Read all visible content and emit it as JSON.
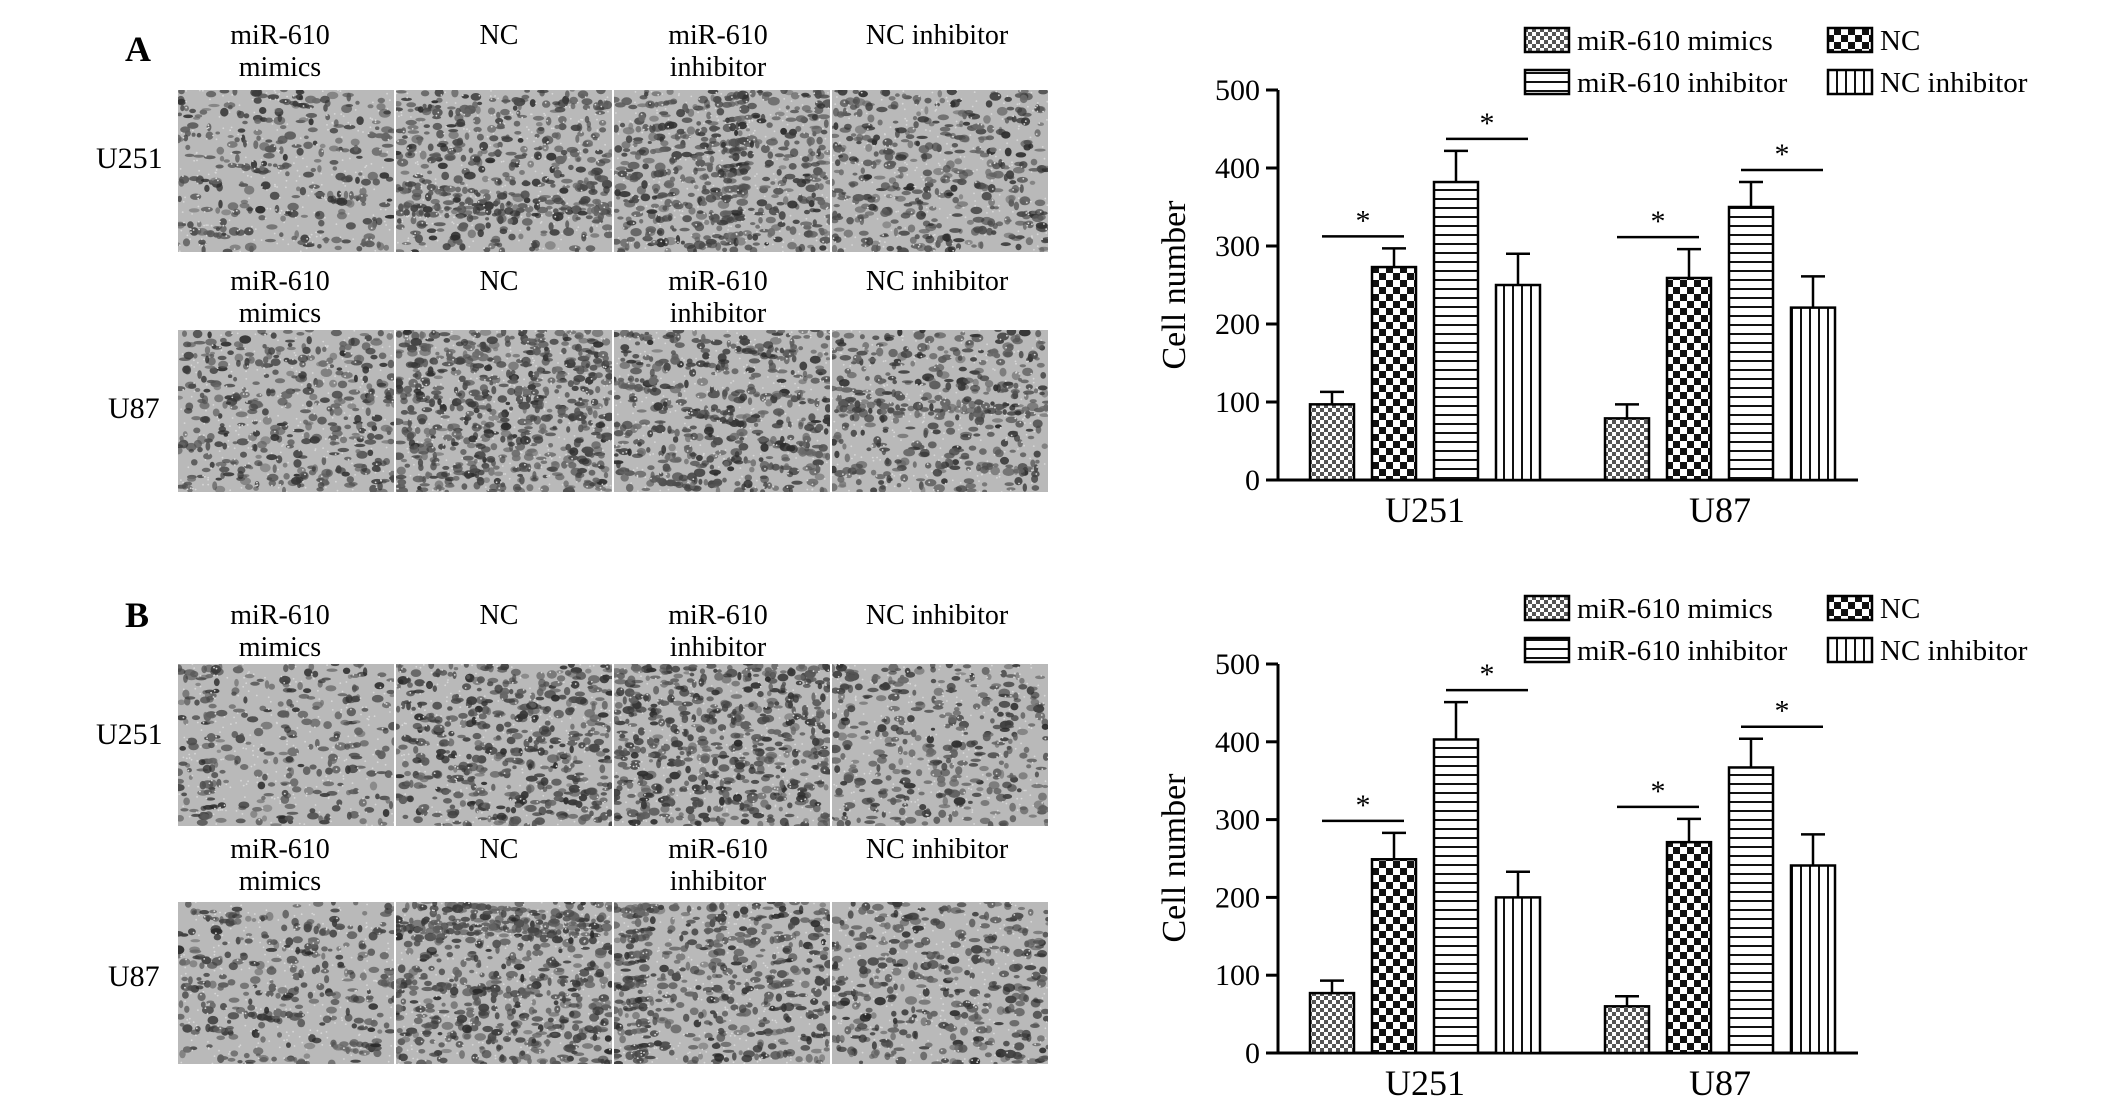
{
  "groups": [
    "miR-610 mimics",
    "NC",
    "miR-610 inhibitor",
    "NC inhibitor"
  ],
  "cells": [
    "U251",
    "U87"
  ],
  "panels": [
    {
      "letter": "A",
      "columns": [
        {
          "line1": "miR-610",
          "line2": "mimics"
        },
        {
          "line1": "",
          "line2": "NC"
        },
        {
          "line1": "miR-610",
          "line2": "inhibitor"
        },
        {
          "line1": "",
          "line2": "NC inhibitor"
        }
      ],
      "rows": [
        "U251",
        "U87"
      ],
      "images": [
        [
          0.35,
          0.55,
          0.62,
          0.48
        ],
        [
          0.45,
          0.72,
          0.58,
          0.5
        ]
      ]
    },
    {
      "letter": "B",
      "columns": [
        {
          "line1": "miR-610",
          "line2": "mimics"
        },
        {
          "line1": "",
          "line2": "NC"
        },
        {
          "line1": "miR-610",
          "line2": "inhibitor"
        },
        {
          "line1": "",
          "line2": "NC inhibitor"
        }
      ],
      "rows": [
        "U251",
        "U87"
      ],
      "images": [
        [
          0.33,
          0.58,
          0.66,
          0.42
        ],
        [
          0.38,
          0.7,
          0.56,
          0.44
        ]
      ]
    }
  ],
  "chart_data": [
    {
      "type": "bar",
      "ylabel": "Cell number",
      "ylim": [
        0,
        500
      ],
      "yticks": [
        "0",
        "100",
        "200",
        "300",
        "400",
        "500"
      ],
      "categories": [
        "U251",
        "U87"
      ],
      "series": [
        {
          "name": "miR-610 mimics",
          "values": [
            97,
            79
          ],
          "errors": [
            16,
            18
          ],
          "pattern": "checker-small"
        },
        {
          "name": "NC",
          "values": [
            273,
            259
          ],
          "errors": [
            24,
            37
          ],
          "pattern": "checker-large"
        },
        {
          "name": "miR-610 inhibitor",
          "values": [
            382,
            350
          ],
          "errors": [
            40,
            32
          ],
          "pattern": "horizontal"
        },
        {
          "name": "NC inhibitor",
          "values": [
            250,
            221
          ],
          "errors": [
            40,
            40
          ],
          "pattern": "vertical"
        }
      ],
      "significance": [
        "*",
        "*",
        "*",
        "*"
      ],
      "legend": "top-right"
    },
    {
      "type": "bar",
      "ylabel": "Cell number",
      "ylim": [
        0,
        500
      ],
      "yticks": [
        "0",
        "100",
        "200",
        "300",
        "400",
        "500"
      ],
      "categories": [
        "U251",
        "U87"
      ],
      "series": [
        {
          "name": "miR-610 mimics",
          "values": [
            77,
            60
          ],
          "errors": [
            16,
            13
          ],
          "pattern": "checker-small"
        },
        {
          "name": "NC",
          "values": [
            249,
            271
          ],
          "errors": [
            34,
            30
          ],
          "pattern": "checker-large"
        },
        {
          "name": "miR-610 inhibitor",
          "values": [
            403,
            367
          ],
          "errors": [
            48,
            37
          ],
          "pattern": "horizontal"
        },
        {
          "name": "NC inhibitor",
          "values": [
            200,
            241
          ],
          "errors": [
            33,
            40
          ],
          "pattern": "vertical"
        }
      ],
      "significance": [
        "*",
        "*",
        "*",
        "*"
      ],
      "legend": "top-right"
    }
  ]
}
